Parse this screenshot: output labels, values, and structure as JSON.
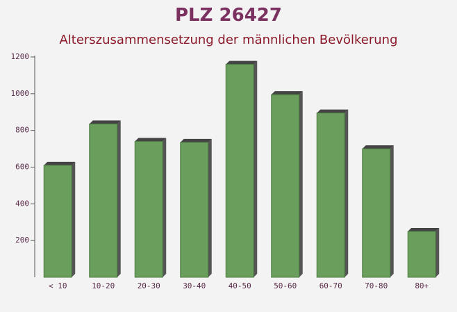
{
  "chart_data": {
    "type": "bar3d",
    "title": "PLZ 26427",
    "subtitle": "Alterszusammensetzung der männlichen Bevölkerung",
    "categories": [
      "< 10",
      "10-20",
      "20-30",
      "30-40",
      "40-50",
      "50-60",
      "60-70",
      "70-80",
      "80+"
    ],
    "values": [
      610,
      835,
      740,
      735,
      1160,
      995,
      895,
      700,
      250
    ],
    "color": "#6a9e5c",
    "ylim": [
      0,
      1200
    ],
    "yticks": [
      200,
      400,
      600,
      800,
      1000,
      1200
    ]
  }
}
